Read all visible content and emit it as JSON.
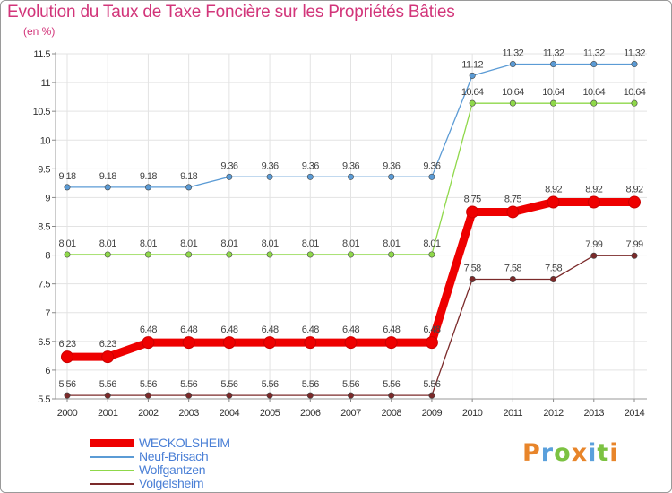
{
  "chart_data": {
    "type": "line",
    "title": "Evolution du Taux de Taxe Foncière sur les Propriétés Bâties",
    "unit_label": "(en %)",
    "xlabel": "",
    "ylabel": "(en %)",
    "ylim": [
      5.5,
      11.5
    ],
    "grid": true,
    "categories": [
      "2000",
      "2001",
      "2002",
      "2003",
      "2004",
      "2005",
      "2006",
      "2007",
      "2008",
      "2009",
      "2010",
      "2011",
      "2012",
      "2013",
      "2014"
    ],
    "y_ticks": [
      "5.5",
      "6",
      "6.5",
      "7",
      "7.5",
      "8",
      "8.5",
      "9",
      "9.5",
      "10",
      "10.5",
      "11",
      "11.5"
    ],
    "series": [
      {
        "name": "Neuf-Brisach",
        "color": "#5b9bd5",
        "values": [
          9.18,
          9.18,
          9.18,
          9.18,
          9.36,
          9.36,
          9.36,
          9.36,
          9.36,
          9.36,
          11.12,
          11.32,
          11.32,
          11.32,
          11.32
        ],
        "labels": [
          "9.18",
          "9.18",
          "9.18",
          "9.18",
          "9.36",
          "9.36",
          "9.36",
          "9.36",
          "9.36",
          "9.36",
          "11.12",
          "11.32",
          "11.32",
          "11.32",
          "11.32"
        ]
      },
      {
        "name": "Wolfgantzen",
        "color": "#8fd84a",
        "values": [
          8.01,
          8.01,
          8.01,
          8.01,
          8.01,
          8.01,
          8.01,
          8.01,
          8.01,
          8.01,
          10.64,
          10.64,
          10.64,
          10.64,
          10.64
        ],
        "labels": [
          "8.01",
          "8.01",
          "8.01",
          "8.01",
          "8.01",
          "8.01",
          "8.01",
          "8.01",
          "8.01",
          "8.01",
          "10.64",
          "10.64",
          "10.64",
          "10.64",
          "10.64"
        ]
      },
      {
        "name": "WECKOLSHEIM",
        "color": "#ee0000",
        "values": [
          6.23,
          6.23,
          6.48,
          6.48,
          6.48,
          6.48,
          6.48,
          6.48,
          6.48,
          6.48,
          8.75,
          8.75,
          8.92,
          8.92,
          8.92
        ],
        "labels": [
          "6.23",
          "6.23",
          "6.48",
          "6.48",
          "6.48",
          "6.48",
          "6.48",
          "6.48",
          "6.48",
          "6.48",
          "8.75",
          "8.75",
          "8.92",
          "8.92",
          "8.92"
        ]
      },
      {
        "name": "Volgelsheim",
        "color": "#7b2a2a",
        "values": [
          5.56,
          5.56,
          5.56,
          5.56,
          5.56,
          5.56,
          5.56,
          5.56,
          5.56,
          5.56,
          7.58,
          7.58,
          7.58,
          7.99,
          7.99
        ],
        "labels": [
          "5.56",
          "5.56",
          "5.56",
          "5.56",
          "5.56",
          "5.56",
          "5.56",
          "5.56",
          "5.56",
          "5.56",
          "7.58",
          "7.58",
          "7.58",
          "7.99",
          "7.99"
        ]
      }
    ],
    "legend": [
      {
        "name": "WECKOLSHEIM",
        "color": "#ee0000",
        "text_color": "#4a7fd6",
        "style": "thick"
      },
      {
        "name": "Neuf-Brisach",
        "color": "#5b9bd5",
        "text_color": "#4a7fd6",
        "style": "thin"
      },
      {
        "name": "Wolfgantzen",
        "color": "#8fd84a",
        "text_color": "#4a7fd6",
        "style": "thin"
      },
      {
        "name": "Volgelsheim",
        "color": "#7b2a2a",
        "text_color": "#4a7fd6",
        "style": "thin"
      }
    ],
    "legend_position": "bottom-left"
  },
  "logo": {
    "letters": [
      {
        "ch": "P",
        "color": "#e8852a"
      },
      {
        "ch": "r",
        "color": "#5aa0dc"
      },
      {
        "ch": "o",
        "color": "#7cc242"
      },
      {
        "ch": "x",
        "color": "#e8852a"
      },
      {
        "ch": "i",
        "color": "#5aa0dc"
      },
      {
        "ch": "t",
        "color": "#7cc242"
      },
      {
        "ch": "i",
        "color": "#e8852a"
      }
    ]
  }
}
